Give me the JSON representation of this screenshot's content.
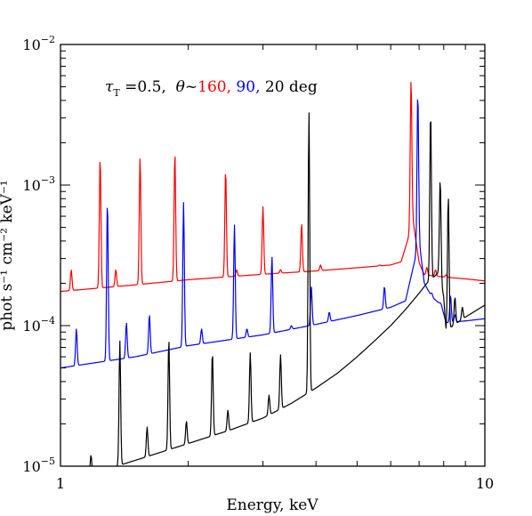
{
  "chart_data": {
    "type": "line",
    "title": "",
    "xlabel": "Energy, keV",
    "ylabel": "phot s⁻¹ cm⁻² keV⁻¹",
    "xscale": "log",
    "yscale": "log",
    "xlim": [
      1,
      10
    ],
    "ylim": [
      1e-05,
      0.01
    ],
    "grid": false,
    "x_tick_labels": [
      {
        "value": 1,
        "label": "1"
      },
      {
        "value": 10,
        "label": "10"
      }
    ],
    "y_tick_labels": [
      {
        "value": 0.01,
        "base": "10",
        "exp": "−2"
      },
      {
        "value": 0.001,
        "base": "10",
        "exp": "−3"
      },
      {
        "value": 0.0001,
        "base": "10",
        "exp": "−4"
      },
      {
        "value": 1e-05,
        "base": "10",
        "exp": "−5"
      }
    ],
    "annotation": {
      "tau_symbol": "τ",
      "tau_sub": "T",
      "tau_value": " =0.5,  ",
      "theta_symbol": "θ",
      "tilde": "~",
      "parts": [
        {
          "text": "160",
          "color": "#ff0000"
        },
        {
          "text": ", ",
          "color": "#ff0000"
        },
        {
          "text": "90",
          "color": "#0000ff"
        },
        {
          "text": ", ",
          "color": "#0000ff"
        },
        {
          "text": "20 deg",
          "color": "#000000"
        }
      ]
    },
    "series": [
      {
        "color": "#ff0000",
        "continuum": [
          [
            1.0,
            0.000175
          ],
          [
            1.5,
            0.000195
          ],
          [
            2.0,
            0.000212
          ],
          [
            3.0,
            0.000232
          ],
          [
            4.0,
            0.000245
          ],
          [
            5.0,
            0.000258
          ],
          [
            6.0,
            0.00027
          ],
          [
            6.35,
            0.000285
          ],
          [
            6.6,
            0.00042
          ],
          [
            6.75,
            0.0006
          ],
          [
            7.0,
            0.00028
          ],
          [
            7.2,
            0.00023
          ],
          [
            8.0,
            0.000222
          ],
          [
            9.0,
            0.000215
          ],
          [
            10.0,
            0.000208
          ]
        ],
        "lines": [
          [
            1.06,
            0.00025
          ],
          [
            1.24,
            0.0016
          ],
          [
            1.35,
            0.00025
          ],
          [
            1.54,
            0.0016
          ],
          [
            1.86,
            0.0017
          ],
          [
            2.45,
            0.0013
          ],
          [
            2.6,
            0.00025
          ],
          [
            3.0,
            0.0007
          ],
          [
            3.3,
            0.00025
          ],
          [
            3.7,
            0.00053
          ],
          [
            4.1,
            0.00027
          ],
          [
            5.65,
            0.00027
          ],
          [
            6.7,
            0.0057
          ],
          [
            7.3,
            0.00026
          ],
          [
            7.65,
            0.00025
          ],
          [
            8.1,
            0.00023
          ]
        ]
      },
      {
        "color": "#0000ff",
        "continuum": [
          [
            1.0,
            5e-05
          ],
          [
            1.5,
            6e-05
          ],
          [
            2.0,
            7.2e-05
          ],
          [
            3.0,
            8.6e-05
          ],
          [
            4.0,
            0.000102
          ],
          [
            5.0,
            0.000118
          ],
          [
            6.0,
            0.000135
          ],
          [
            6.5,
            0.00015
          ],
          [
            6.8,
            0.00027
          ],
          [
            7.0,
            0.0004
          ],
          [
            7.2,
            0.0002
          ],
          [
            7.5,
            0.00016
          ],
          [
            7.9,
            0.00014
          ],
          [
            8.1,
            0.000105
          ],
          [
            9.0,
            0.000108
          ],
          [
            10.0,
            0.000112
          ]
        ],
        "lines": [
          [
            1.09,
            9.5e-05
          ],
          [
            1.29,
            0.00078
          ],
          [
            1.43,
            0.000105
          ],
          [
            1.62,
            0.00012
          ],
          [
            1.95,
            0.00075
          ],
          [
            2.15,
            9.5e-05
          ],
          [
            2.57,
            0.00052
          ],
          [
            2.75,
            9.5e-05
          ],
          [
            3.15,
            0.00031
          ],
          [
            3.5,
            0.0001
          ],
          [
            3.9,
            0.00019
          ],
          [
            4.3,
            0.000125
          ],
          [
            5.8,
            0.00019
          ],
          [
            6.95,
            0.0046
          ],
          [
            7.5,
            0.00017
          ],
          [
            7.85,
            0.000145
          ],
          [
            8.3,
            0.000165
          ],
          [
            8.5,
            0.00012
          ]
        ]
      },
      {
        "color": "#000000",
        "continuum": [
          [
            1.0,
            7.5e-06
          ],
          [
            1.5,
            1.1e-05
          ],
          [
            2.0,
            1.45e-05
          ],
          [
            2.5,
            1.8e-05
          ],
          [
            3.0,
            2.2e-05
          ],
          [
            3.5,
            2.8e-05
          ],
          [
            4.0,
            3.6e-05
          ],
          [
            4.5,
            4.6e-05
          ],
          [
            5.0,
            6e-05
          ],
          [
            5.5,
            7.8e-05
          ],
          [
            6.0,
            0.0001
          ],
          [
            6.5,
            0.00013
          ],
          [
            7.0,
            0.00017
          ],
          [
            7.3,
            0.0002
          ],
          [
            7.8,
            0.00024
          ],
          [
            8.0,
            0.00016
          ],
          [
            8.1,
            9.2e-05
          ],
          [
            9.0,
            0.000115
          ],
          [
            10.0,
            0.00014
          ]
        ],
        "lines": [
          [
            1.18,
            1.2e-05
          ],
          [
            1.38,
            7.8e-05
          ],
          [
            1.6,
            1.9e-05
          ],
          [
            1.8,
            8e-05
          ],
          [
            1.98,
            2.1e-05
          ],
          [
            2.28,
            6.5e-05
          ],
          [
            2.48,
            2.5e-05
          ],
          [
            2.8,
            6.4e-05
          ],
          [
            3.1,
            3.2e-05
          ],
          [
            3.3,
            6.2e-05
          ],
          [
            3.85,
            0.0034
          ],
          [
            7.45,
            0.0034
          ],
          [
            7.85,
            0.0011
          ],
          [
            8.2,
            0.00085
          ],
          [
            8.5,
            0.00016
          ],
          [
            8.85,
            0.000135
          ]
        ]
      }
    ]
  }
}
